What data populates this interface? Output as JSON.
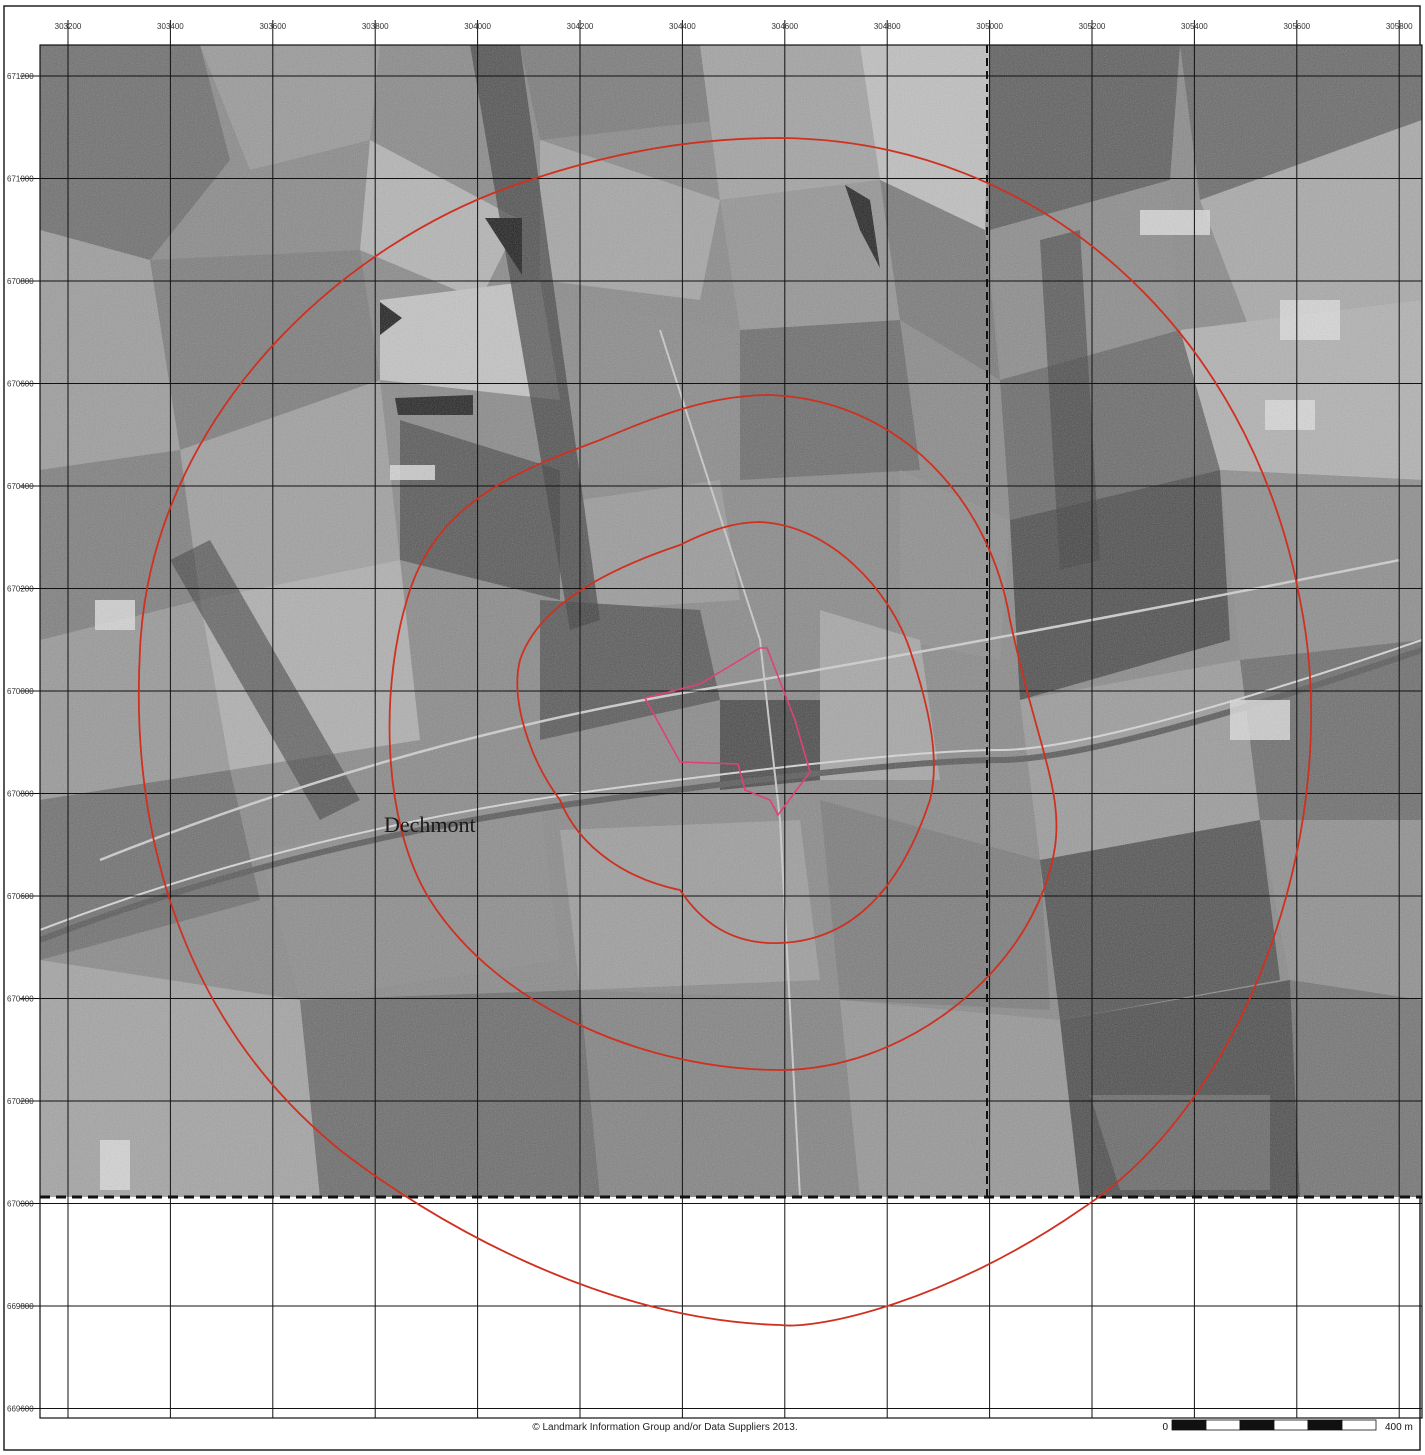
{
  "map": {
    "easting_labels": [
      "303200",
      "303400",
      "303600",
      "303800",
      "304000",
      "304200",
      "304400",
      "304600",
      "304800",
      "305000",
      "305200",
      "305400",
      "305600",
      "305800"
    ],
    "northing_labels": [
      "671200",
      "671000",
      "670800",
      "670600",
      "670400",
      "670200",
      "670000",
      "670800",
      "670600",
      "670400",
      "670200",
      "670000",
      "669800",
      "669600"
    ],
    "place_name": "Dechmont",
    "copyright": "© Landmark Information Group and/or Data Suppliers 2013.",
    "scale": {
      "start_label": "0",
      "end_label": "400 m",
      "segments": 6
    },
    "buffer_rings_color": "#d03020",
    "site_boundary_color": "#e0407a",
    "grid_color": "#111111",
    "imagery_style": "greyscale aerial photograph"
  }
}
